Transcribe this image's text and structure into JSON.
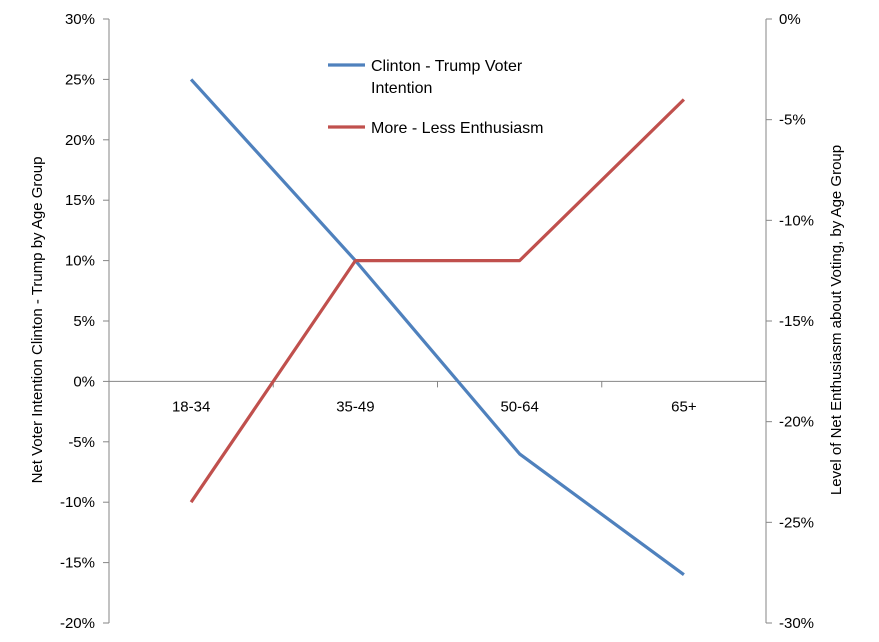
{
  "chart_data": {
    "type": "line",
    "categories": [
      "18-34",
      "35-49",
      "50-64",
      "65+"
    ],
    "y_left": {
      "label": "Net Voter Intention Clinton - Trump by Age Group",
      "range": [
        -0.2,
        0.3
      ],
      "ticks": [
        0.3,
        0.25,
        0.2,
        0.15,
        0.1,
        0.05,
        0.0,
        -0.05,
        -0.1,
        -0.15,
        -0.2
      ],
      "tick_labels": [
        "30%",
        "25%",
        "20%",
        "15%",
        "10%",
        "5%",
        "0%",
        "-5%",
        "-10%",
        "-15%",
        "-20%"
      ]
    },
    "y_right": {
      "label": "Level of Net Enthusiasm about Voting, by Age Group",
      "range": [
        -0.3,
        0.0
      ],
      "ticks": [
        0.0,
        -0.05,
        -0.1,
        -0.15,
        -0.2,
        -0.25,
        -0.3
      ],
      "tick_labels": [
        "0%",
        "-5%",
        "-10%",
        "-15%",
        "-20%",
        "-25%",
        "-30%"
      ]
    },
    "series": [
      {
        "name_lines": [
          "Clinton - Trump Voter",
          "Intention"
        ],
        "axis": "left",
        "color": "#4F81BD",
        "values": [
          0.25,
          0.1,
          -0.06,
          -0.16
        ]
      },
      {
        "name_lines": [
          "More - Less Enthusiasm"
        ],
        "axis": "right",
        "color": "#C0504D",
        "values": [
          -0.24,
          -0.12,
          -0.12,
          -0.04
        ]
      }
    ],
    "legend_position": "top-center",
    "grid": false
  }
}
